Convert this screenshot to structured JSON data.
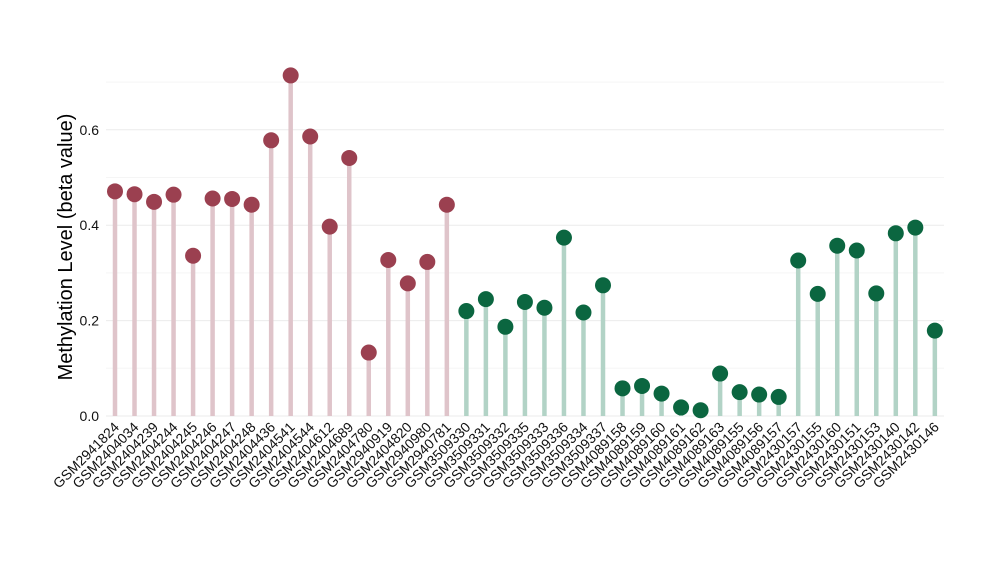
{
  "chart_data": {
    "type": "lollipop",
    "ylabel": "Methylation Level (beta value)",
    "xlabel": "",
    "ylim": [
      0,
      0.7
    ],
    "yticks": [
      0.0,
      0.2,
      0.4,
      0.6
    ],
    "ytick_labels": [
      "0.0",
      "0.2",
      "0.4",
      "0.6"
    ],
    "grid": true,
    "legend": "none",
    "colors": {
      "group1_point": "#9b4050",
      "group1_stem": "#dfc4ca",
      "group2_point": "#0b6640",
      "group2_stem": "#b2d3c6"
    },
    "categories": [
      "GSM2941824",
      "GSM2404034",
      "GSM2404239",
      "GSM2404244",
      "GSM2404245",
      "GSM2404246",
      "GSM2404247",
      "GSM2404248",
      "GSM2404436",
      "GSM2404541",
      "GSM2404544",
      "GSM2404612",
      "GSM2404689",
      "GSM2404780",
      "GSM2940919",
      "GSM2404820",
      "GSM2940980",
      "GSM2940781",
      "GSM3509330",
      "GSM3509331",
      "GSM3509332",
      "GSM3509335",
      "GSM3509333",
      "GSM3509336",
      "GSM3509334",
      "GSM3509337",
      "GSM4089158",
      "GSM4089159",
      "GSM4089160",
      "GSM4089161",
      "GSM4089162",
      "GSM4089163",
      "GSM4089155",
      "GSM4089156",
      "GSM4089157",
      "GSM2430157",
      "GSM2430155",
      "GSM2430160",
      "GSM2430151",
      "GSM2430153",
      "GSM2430140",
      "GSM2430142",
      "GSM2430146"
    ],
    "values": [
      0.471,
      0.465,
      0.449,
      0.464,
      0.336,
      0.456,
      0.455,
      0.443,
      0.578,
      0.714,
      0.586,
      0.397,
      0.541,
      0.133,
      0.327,
      0.278,
      0.323,
      0.443,
      0.22,
      0.245,
      0.187,
      0.239,
      0.227,
      0.374,
      0.217,
      0.274,
      0.058,
      0.063,
      0.047,
      0.018,
      0.012,
      0.089,
      0.05,
      0.045,
      0.04,
      0.326,
      0.256,
      0.357,
      0.347,
      0.257,
      0.383,
      0.395,
      0.179
    ],
    "groups": [
      1,
      1,
      1,
      1,
      1,
      1,
      1,
      1,
      1,
      1,
      1,
      1,
      1,
      1,
      1,
      1,
      1,
      1,
      2,
      2,
      2,
      2,
      2,
      2,
      2,
      2,
      2,
      2,
      2,
      2,
      2,
      2,
      2,
      2,
      2,
      2,
      2,
      2,
      2,
      2,
      2,
      2,
      2
    ]
  }
}
